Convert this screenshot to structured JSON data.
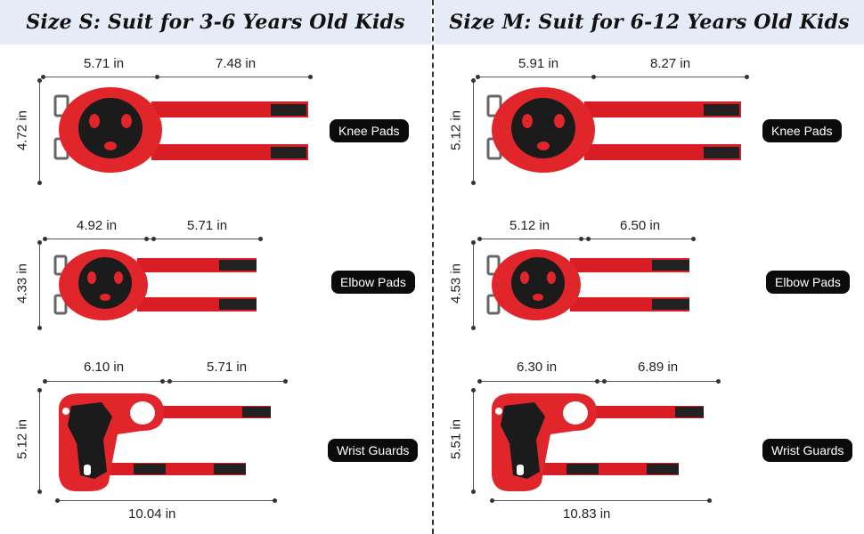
{
  "headers": {
    "left": "Size S:  Suit for 3-6 Years Old Kids",
    "right": "Size M: Suit for 6-12 Years Old Kids"
  },
  "left": {
    "knee": {
      "label": "Knee Pads",
      "w1": "5.71 in",
      "w2": "7.48 in",
      "h": "4.72 in"
    },
    "elbow": {
      "label": "Elbow Pads",
      "w1": "4.92 in",
      "w2": "5.71 in",
      "h": "4.33 in"
    },
    "wrist": {
      "label": "Wrist Guards",
      "w1": "6.10 in",
      "w2": "5.71 in",
      "h": "5.12 in",
      "total": "10.04 in"
    }
  },
  "right": {
    "knee": {
      "label": "Knee Pads",
      "w1": "5.91 in",
      "w2": "8.27 in",
      "h": "5.12 in"
    },
    "elbow": {
      "label": "Elbow Pads",
      "w1": "5.12 in",
      "w2": "6.50 in",
      "h": "4.53 in"
    },
    "wrist": {
      "label": "Wrist Guards",
      "w1": "6.30 in",
      "w2": "6.89 in",
      "h": "5.51 in",
      "total": "10.83 in"
    }
  },
  "colors": {
    "pad_red": "#e0262b",
    "strap_red": "#d81e24",
    "cap_black": "#1b1b1b",
    "header_bg": "#e6ecf7"
  }
}
